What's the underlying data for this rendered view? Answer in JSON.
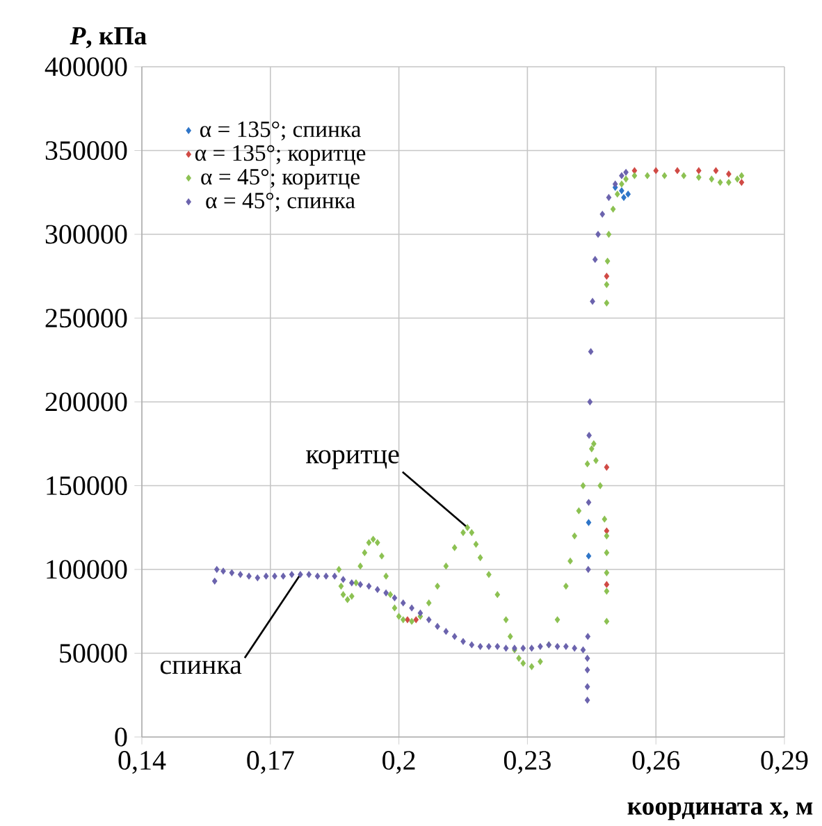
{
  "chart_data": {
    "type": "scatter",
    "xlabel": "координата x, м",
    "ylabel": "*P*, кПа",
    "xlim": [
      0.14,
      0.29
    ],
    "ylim": [
      0,
      400000
    ],
    "xticks": [
      {
        "value": 0.14,
        "label": "0,14"
      },
      {
        "value": 0.17,
        "label": "0,17"
      },
      {
        "value": 0.2,
        "label": "0,2"
      },
      {
        "value": 0.23,
        "label": "0,23"
      },
      {
        "value": 0.26,
        "label": "0,26"
      },
      {
        "value": 0.29,
        "label": "0,29"
      }
    ],
    "yticks": [
      0,
      50000,
      100000,
      150000,
      200000,
      250000,
      300000,
      350000,
      400000
    ],
    "grid": true,
    "legend": "top left",
    "marker": "diamond",
    "series": [
      {
        "name": "α = 135°; спинка",
        "color": "#2e75c8",
        "x": [
          0.2443,
          0.2443,
          0.2505,
          0.252,
          0.2525,
          0.2535
        ],
        "values": [
          128000,
          108000,
          328000,
          326000,
          322000,
          324000
        ]
      },
      {
        "name": "α = 135°; коритце",
        "color": "#d04a45",
        "x": [
          0.202,
          0.204,
          0.2485,
          0.2485,
          0.2485,
          0.2485,
          0.255,
          0.26,
          0.265,
          0.27,
          0.274,
          0.277,
          0.28
        ],
        "values": [
          70000,
          70000,
          161000,
          123000,
          91000,
          275000,
          338000,
          338000,
          338000,
          338000,
          338000,
          336000,
          331000
        ]
      },
      {
        "name": "α = 45°; коритце",
        "color": "#8cc152",
        "x": [
          0.186,
          0.1865,
          0.187,
          0.188,
          0.189,
          0.19,
          0.191,
          0.192,
          0.193,
          0.194,
          0.195,
          0.196,
          0.197,
          0.198,
          0.199,
          0.2,
          0.201,
          0.203,
          0.205,
          0.207,
          0.209,
          0.211,
          0.213,
          0.215,
          0.216,
          0.217,
          0.218,
          0.219,
          0.221,
          0.223,
          0.225,
          0.226,
          0.227,
          0.228,
          0.229,
          0.231,
          0.233,
          0.235,
          0.237,
          0.239,
          0.24,
          0.241,
          0.242,
          0.243,
          0.244,
          0.245,
          0.2455,
          0.246,
          0.247,
          0.248,
          0.2485,
          0.2485,
          0.2485,
          0.2485,
          0.2485,
          0.2485,
          0.2485,
          0.2487,
          0.249,
          0.25,
          0.251,
          0.252,
          0.253,
          0.255,
          0.258,
          0.262,
          0.2665,
          0.27,
          0.273,
          0.275,
          0.277,
          0.279,
          0.28
        ],
        "values": [
          100000,
          90000,
          85000,
          82000,
          84000,
          92000,
          102000,
          110000,
          116000,
          118000,
          116000,
          108000,
          96000,
          85000,
          77000,
          72000,
          70000,
          69000,
          72000,
          80000,
          90000,
          102000,
          113000,
          122000,
          125000,
          122000,
          115000,
          107000,
          97000,
          85000,
          70000,
          60000,
          52000,
          47000,
          44000,
          42000,
          45000,
          55000,
          70000,
          90000,
          105000,
          120000,
          135000,
          150000,
          163000,
          172000,
          175000,
          165000,
          150000,
          130000,
          120000,
          110000,
          98000,
          87000,
          69000,
          259000,
          270000,
          284000,
          300000,
          315000,
          324000,
          330000,
          333000,
          335000,
          335000,
          335000,
          335000,
          334000,
          333000,
          331000,
          331000,
          333000,
          335000
        ]
      },
      {
        "name": "α = 45°; спинка",
        "color": "#6b63ad",
        "x": [
          0.157,
          0.1575,
          0.159,
          0.161,
          0.163,
          0.165,
          0.167,
          0.169,
          0.171,
          0.173,
          0.175,
          0.177,
          0.179,
          0.181,
          0.183,
          0.185,
          0.187,
          0.189,
          0.191,
          0.193,
          0.195,
          0.197,
          0.199,
          0.201,
          0.203,
          0.205,
          0.207,
          0.209,
          0.211,
          0.213,
          0.215,
          0.217,
          0.219,
          0.221,
          0.223,
          0.225,
          0.227,
          0.229,
          0.231,
          0.233,
          0.235,
          0.237,
          0.239,
          0.241,
          0.243,
          0.244,
          0.244,
          0.244,
          0.244,
          0.2441,
          0.2442,
          0.2443,
          0.2444,
          0.2446,
          0.2448,
          0.2452,
          0.2458,
          0.2465,
          0.2475,
          0.249,
          0.2505,
          0.252,
          0.253
        ],
        "values": [
          93000,
          100000,
          99000,
          98000,
          97000,
          96000,
          95000,
          96000,
          96000,
          96000,
          97000,
          97000,
          97000,
          96000,
          96000,
          96000,
          94000,
          92000,
          91000,
          90000,
          88000,
          86000,
          83000,
          80000,
          77000,
          74000,
          70000,
          66000,
          63000,
          60000,
          57000,
          55000,
          54000,
          54000,
          54000,
          53000,
          53000,
          53000,
          53000,
          54000,
          55000,
          54000,
          54000,
          53000,
          52000,
          47000,
          40000,
          30000,
          22000,
          60000,
          100000,
          140000,
          180000,
          200000,
          230000,
          260000,
          285000,
          300000,
          312000,
          322000,
          330000,
          335000,
          337000
        ]
      }
    ],
    "annotations": [
      {
        "text": "коритце",
        "x": 0.216,
        "y": 125000
      },
      {
        "text": "спинка",
        "x": 0.177,
        "y": 97000
      }
    ]
  }
}
